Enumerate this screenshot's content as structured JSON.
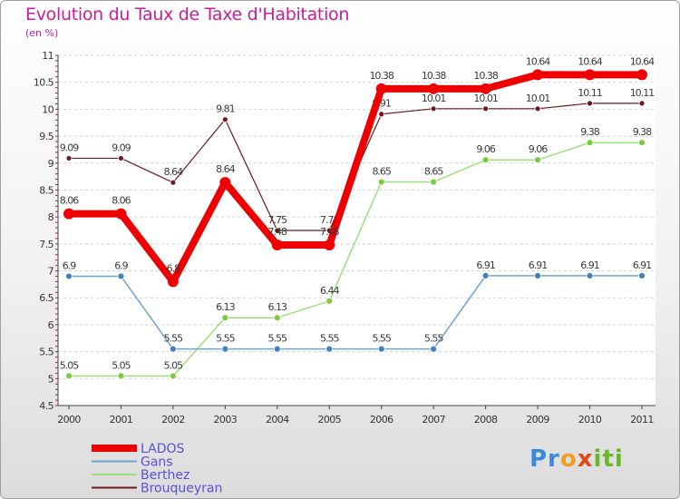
{
  "chart_title": "Evolution du Taux de Taxe d'Habitation",
  "chart_unit": "(en %)",
  "brand": "Proxiti",
  "chart_data": {
    "type": "line",
    "title": "Evolution du Taux de Taxe d'Habitation",
    "ylabel": "(en %)",
    "x": [
      "2000",
      "2001",
      "2002",
      "2003",
      "2004",
      "2005",
      "2006",
      "2007",
      "2008",
      "2009",
      "2010",
      "2011"
    ],
    "ylim": [
      4.5,
      11
    ],
    "yticks": [
      4.5,
      5,
      5.5,
      6,
      6.5,
      7,
      7.5,
      8,
      8.5,
      9,
      9.5,
      10,
      10.5,
      11
    ],
    "ytick_labels": [
      "4.5",
      "5",
      "5.5",
      "6",
      "6.5",
      "7",
      "7.5",
      "8",
      "8.5",
      "9",
      "9.5",
      "10",
      "10.5",
      "11"
    ],
    "grid": "horizontal dashed",
    "legend_position": "bottom-left",
    "series": [
      {
        "name": "Brouqueyran",
        "color": "#6b1a1f",
        "width": 1.2,
        "r": 3,
        "values": [
          9.09,
          9.09,
          8.64,
          9.81,
          7.75,
          7.75,
          9.91,
          10.01,
          10.01,
          10.01,
          10.11,
          10.11
        ],
        "labels": [
          "9.09",
          "9.09",
          "8.64",
          "9.81",
          "7.75",
          "7.75",
          "9.91",
          "10.01",
          "10.01",
          "10.01",
          "10.11",
          "10.11"
        ]
      },
      {
        "name": "Berthez",
        "color": "#9be07a",
        "marker": "#7acb3c",
        "width": 1.5,
        "r": 3.5,
        "values": [
          5.05,
          5.05,
          5.05,
          6.13,
          6.13,
          6.44,
          8.65,
          8.65,
          9.06,
          9.06,
          9.38,
          9.38
        ],
        "labels": [
          "5.05",
          "5.05",
          "5.05",
          "6.13",
          "6.13",
          "6.44",
          "8.65",
          "8.65",
          "9.06",
          "9.06",
          "9.38",
          "9.38"
        ]
      },
      {
        "name": "Gans",
        "color": "#6fa3cc",
        "marker": "#3f82c0",
        "width": 1.5,
        "r": 3.5,
        "values": [
          6.9,
          6.9,
          5.55,
          5.55,
          5.55,
          5.55,
          5.55,
          5.55,
          6.91,
          6.91,
          6.91,
          6.91
        ],
        "labels": [
          "6.9",
          "6.9",
          "5.55",
          "5.55",
          "5.55",
          "5.55",
          "5.55",
          "5.55",
          "6.91",
          "6.91",
          "6.91",
          "6.91"
        ]
      },
      {
        "name": "LADOS",
        "color": "#ee0000",
        "width": 8,
        "r": 6,
        "values": [
          8.06,
          8.06,
          6.8,
          8.64,
          7.48,
          7.48,
          10.38,
          10.38,
          10.38,
          10.64,
          10.64,
          10.64
        ],
        "labels": [
          "8.06",
          "8.06",
          "6.8",
          "8.64",
          "7.48",
          "7.48",
          "10.38",
          "10.38",
          "10.38",
          "10.64",
          "10.64",
          "10.64"
        ]
      }
    ],
    "legend": [
      "LADOS",
      "Gans",
      "Berthez",
      "Brouqueyran"
    ]
  }
}
